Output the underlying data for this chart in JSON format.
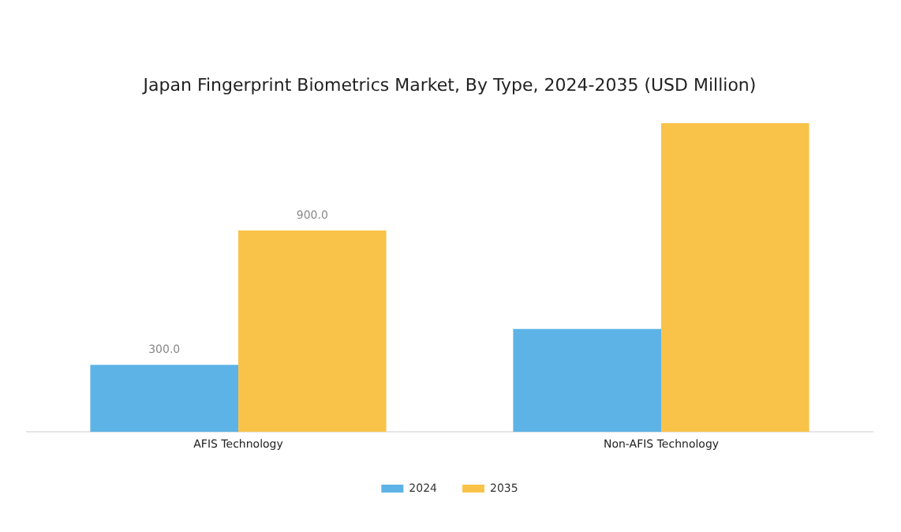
{
  "chart_data": {
    "type": "bar",
    "title": "Japan Fingerprint Biometrics Market, By Type, 2024-2035 (USD Million)",
    "categories": [
      "AFIS Technology",
      "Non-AFIS Technology"
    ],
    "series": [
      {
        "name": "2024",
        "color": "#5db3e6",
        "values": [
          300,
          460
        ],
        "value_labels": [
          "300.0",
          null
        ]
      },
      {
        "name": "2035",
        "color": "#f9c34a",
        "values": [
          900,
          1380
        ],
        "value_labels": [
          "900.0",
          null
        ]
      }
    ],
    "grid": false,
    "legend": "bottom"
  }
}
